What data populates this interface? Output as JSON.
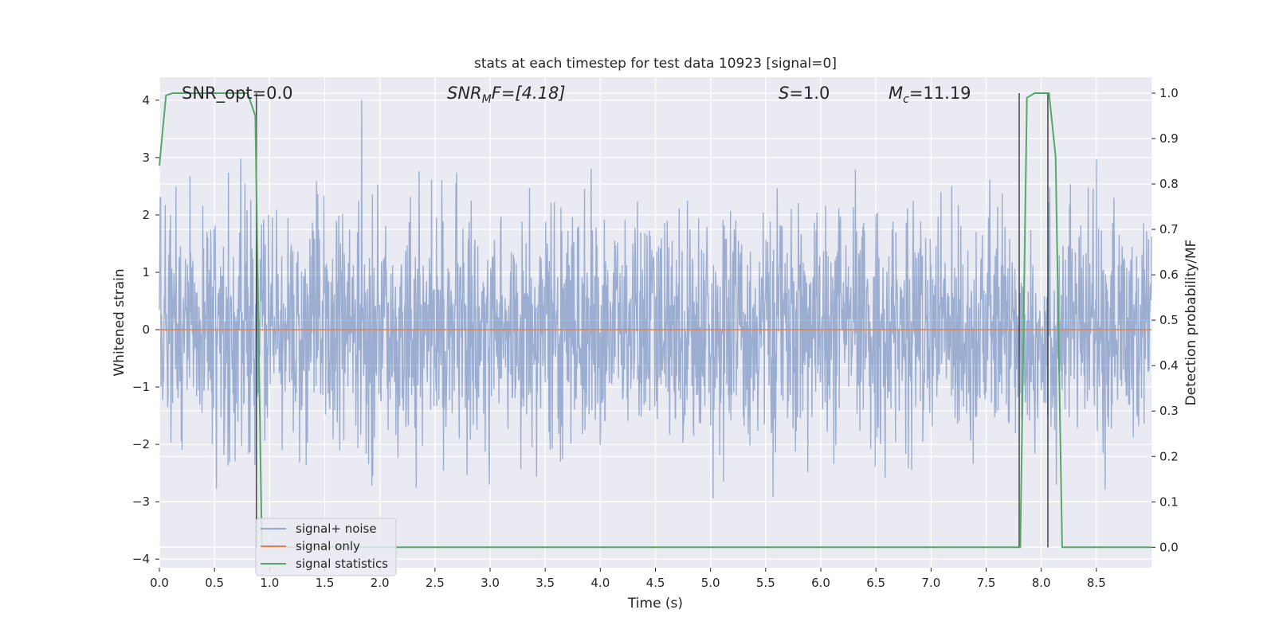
{
  "chart_data": {
    "type": "line",
    "title": "stats at each timestep for test data 10923 [signal=0]",
    "xlabel": "Time (s)",
    "ylabel_left": "Whitened strain",
    "ylabel_right": "Detection probability/MF",
    "xlim": [
      0.0,
      9.0
    ],
    "ylim_left": [
      -4.15,
      4.4
    ],
    "ylim_right": [
      -0.045,
      1.035
    ],
    "x_ticks": [
      "0.0",
      "0.5",
      "1.0",
      "1.5",
      "2.0",
      "2.5",
      "3.0",
      "3.5",
      "4.0",
      "4.5",
      "5.0",
      "5.5",
      "6.0",
      "6.5",
      "7.0",
      "7.5",
      "8.0",
      "8.5"
    ],
    "y_ticks_left": [
      "4",
      "3",
      "2",
      "1",
      "0",
      "−1",
      "−2",
      "−3",
      "−4"
    ],
    "y_ticks_right": [
      "1.0",
      "0.9",
      "0.8",
      "0.7",
      "0.6",
      "0.5",
      "0.4",
      "0.3",
      "0.2",
      "0.1",
      "0.0"
    ],
    "grid": true,
    "annotations": {
      "snr_opt": "SNR_opt=0.0",
      "snr_mf_base": "SNR",
      "snr_mf_sub": "M",
      "snr_mf_rest": "F=[4.18]",
      "s_label": "S",
      "s_value": "=1.0",
      "mc_base": "M",
      "mc_sub": "c",
      "mc_value": "=11.19"
    },
    "legend": {
      "placement": "bottom-left",
      "entries": [
        "signal+ noise",
        "signal only",
        "signal statistics"
      ]
    },
    "series": [
      {
        "name": "signal+ noise",
        "axis": "left",
        "color": "#4c72b0",
        "description": "whitened noise, roughly within ±2.5 with spikes to ±4",
        "amplitude_std": 1.0,
        "peak_max": 4.0,
        "peak_min": -3.8
      },
      {
        "name": "signal only",
        "axis": "left",
        "color": "#dd8452",
        "x": [
          0.0,
          9.0
        ],
        "y": [
          0.0,
          0.0
        ]
      },
      {
        "name": "signal statistics",
        "axis": "right",
        "color": "#55a868",
        "x": [
          0.0,
          0.06,
          0.12,
          0.3,
          0.5,
          0.7,
          0.8,
          0.87,
          0.93,
          0.94,
          1.0,
          2.0,
          3.0,
          4.0,
          5.0,
          6.0,
          7.0,
          7.5,
          7.8,
          7.81,
          7.87,
          7.94,
          8.0,
          8.07,
          8.13,
          8.19,
          8.5,
          9.0
        ],
        "y": [
          0.84,
          0.995,
          1.0,
          1.0,
          1.0,
          1.0,
          1.0,
          0.95,
          0.0,
          0.0,
          0.0,
          0.0,
          0.0,
          0.0,
          0.0,
          0.0,
          0.0,
          0.0,
          0.0,
          0.0,
          0.99,
          1.0,
          1.0,
          1.0,
          0.86,
          0.0,
          0.0,
          0.0
        ]
      }
    ],
    "vertical_lines": [
      {
        "x": 0.88,
        "y_range_right": [
          0.0,
          1.0
        ],
        "color": "#333333"
      },
      {
        "x": 7.8,
        "y_range_right": [
          0.0,
          1.0
        ],
        "color": "#333333"
      },
      {
        "x": 8.06,
        "y_range_right": [
          0.0,
          1.0
        ],
        "color": "#333333"
      }
    ],
    "colors": {
      "plot_background": "#eaeaf2",
      "grid": "#ffffff",
      "noise": "#4c72b0",
      "signal": "#dd8452",
      "statistics": "#55a868",
      "vline": "#333333"
    }
  }
}
